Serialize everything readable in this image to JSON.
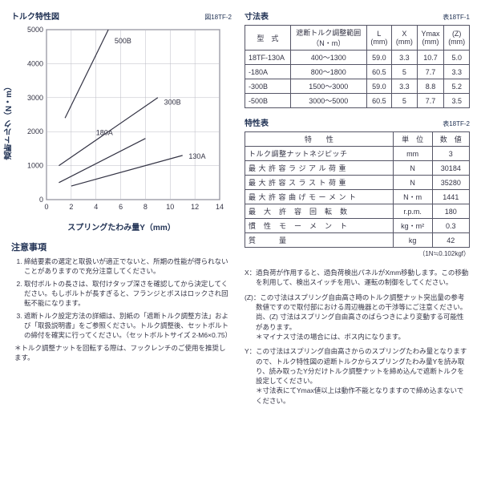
{
  "leftTitle": "トルク特性図",
  "leftTag": "図18TF-2",
  "chart": {
    "xlabel": "スプリングたわみ量Y（mm）",
    "ylabel": "遮断トルク（N・m）",
    "x": {
      "min": 0,
      "max": 14,
      "ticks": [
        0,
        2,
        4,
        6,
        8,
        10,
        12,
        14
      ]
    },
    "y": {
      "min": 0,
      "max": 5000,
      "ticks": [
        0,
        1000,
        2000,
        3000,
        4000,
        5000
      ]
    },
    "lines": [
      {
        "label": "500B",
        "color": "#333344",
        "pts": [
          [
            1.5,
            2400
          ],
          [
            5,
            5000
          ]
        ]
      },
      {
        "label": "300B",
        "color": "#333344",
        "pts": [
          [
            1,
            1000
          ],
          [
            9,
            3000
          ]
        ]
      },
      {
        "label": "180A",
        "color": "#333344",
        "pts": [
          [
            1,
            500
          ],
          [
            8,
            1800
          ]
        ]
      },
      {
        "label": "130A",
        "color": "#333344",
        "pts": [
          [
            2,
            400
          ],
          [
            11,
            1300
          ]
        ]
      }
    ],
    "labelPos": {
      "500B": [
        5.5,
        4600
      ],
      "300B": [
        9.5,
        2800
      ],
      "180A": [
        4,
        1900
      ],
      "130A": [
        11.5,
        1200
      ]
    }
  },
  "dimTitle": "寸法表",
  "dimTag": "表18TF-1",
  "dimHead": [
    "型　式",
    "遮断トルク調整範囲\n（N・m）",
    "L\n(mm)",
    "X\n(mm)",
    "Ymax\n(mm)",
    "(Z)\n(mm)"
  ],
  "dimRows": [
    [
      "18TF-130A",
      "400～1300",
      "59.0",
      "3.3",
      "10.7",
      "5.0"
    ],
    [
      "-180A",
      "800～1800",
      "60.5",
      "5",
      "7.7",
      "3.3"
    ],
    [
      "-300B",
      "1500～3000",
      "59.0",
      "3.3",
      "8.8",
      "5.2"
    ],
    [
      "-500B",
      "3000～5000",
      "60.5",
      "5",
      "7.7",
      "3.5"
    ]
  ],
  "chrTitle": "特性表",
  "chrTag": "表18TF-2",
  "chrHead": [
    "特　　性",
    "単　位",
    "数　値"
  ],
  "chrRows": [
    [
      "トルク調整ナットネジピッチ",
      "mm",
      "3"
    ],
    [
      "最 大 許 容 ラ ジ ア ル 荷 重",
      "N",
      "30184"
    ],
    [
      "最 大 許 容 ス ラ ス ト 荷 重",
      "N",
      "35280"
    ],
    [
      "最 大 許 容 曲 げ モ ー メ ン ト",
      "N・m",
      "1441"
    ],
    [
      "最　大　許　容　回　転　数",
      "r.p.m.",
      "180"
    ],
    [
      "慣　性　モ　ー　メ　ン　ト",
      "kg・m²",
      "0.3"
    ],
    [
      "質　　　量",
      "kg",
      "42"
    ]
  ],
  "unitFoot": "（1N≒0.102kgf）",
  "notesTitle": "注意事項",
  "notesList": [
    "締結要素の選定と取扱いが適正でないと、所期の性能が得られないことがありますので充分注意してください。",
    "取付ボルトの長さは、取付けタップ深さを確認してから決定してください。もしボルトが長すぎると、フランジとボスはロックされ回転不能になります。",
    "遮断トルク設定方法の詳細は、別紙の「遮断トルク調整方法」および「取扱説明書」をご参照ください。トルク調整後、セットボルトの締付を確実に行ってください。（セットボルトサイズ 2-M6×0.75）"
  ],
  "notesSub": "＊トルク調整ナットを回転する際は、フックレンチのご使用を推奨します。",
  "rightNotes": [
    "X：過負荷が作用すると、過負荷検出パネルがXmm移動します。この移動を利用して、検出スイッチを用い、運転の制御をしてください。",
    "(Z)：この寸法はスプリング自由高さ時のトルク調整ナット突出量の参考数値ですので取付部における周辺機器との干渉等にご注意ください。尚、(Z) 寸法はスプリング自由高さのばらつきにより変動する可能性があります。\n＊マイナス寸法の場合には、ボス内になります。",
    "Y：この寸法はスプリング自由高さからのスプリングたわみ量となりますので、トルク特性図の遮断トルクからスプリングたわみ量Yを読み取り、読み取ったY分だけトルク調整ナットを締め込んで遮断トルクを設定してください。\n＊寸法表にてYmax値以上は動作不能となりますので締め込まないでください。"
  ]
}
